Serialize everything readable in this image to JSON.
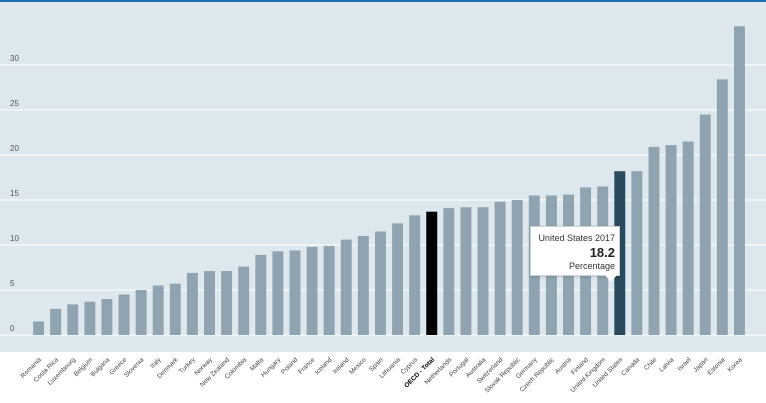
{
  "chart_data": {
    "type": "bar",
    "categories": [
      "Romania",
      "Costa Rica",
      "Luxembourg",
      "Belgium",
      "Bulgaria",
      "Greece",
      "Slovenia",
      "Italy",
      "Denmark",
      "Turkey",
      "Norway",
      "New Zealand",
      "Colombia",
      "Malta",
      "Hungary",
      "Poland",
      "France",
      "Iceland",
      "Ireland",
      "Mexico",
      "Spain",
      "Lithuania",
      "Cyprus",
      "OECD - Total",
      "Netherlands",
      "Portugal",
      "Australia",
      "Switzerland",
      "Slovak Republic",
      "Germany",
      "Czech Republic",
      "Austria",
      "Finland",
      "United Kingdom",
      "United States",
      "Canada",
      "Chile",
      "Latvia",
      "Israel",
      "Japan",
      "Estonia",
      "Korea"
    ],
    "values": [
      1.5,
      2.9,
      3.4,
      3.7,
      4.0,
      4.5,
      5.0,
      5.5,
      5.7,
      6.9,
      7.1,
      7.1,
      7.6,
      8.9,
      9.3,
      9.4,
      9.8,
      9.9,
      10.6,
      11.0,
      11.5,
      12.4,
      13.3,
      13.7,
      14.1,
      14.2,
      14.2,
      14.8,
      15.0,
      15.5,
      15.5,
      15.6,
      16.4,
      16.5,
      18.2,
      18.2,
      20.9,
      21.1,
      21.5,
      24.5,
      28.4,
      34.3
    ],
    "highlight": {
      "United States": "#2b4a5e",
      "OECD - Total": "#000000"
    },
    "bar_color": "#8fa4b0",
    "background_color": "#dce7ee",
    "ylim": [
      0,
      35
    ],
    "yticks": [
      0,
      5,
      10,
      15,
      20,
      25,
      30
    ],
    "grid": true,
    "tooltip": {
      "title": "United States 2017",
      "value": "18.2",
      "unit": "Percentage"
    }
  }
}
